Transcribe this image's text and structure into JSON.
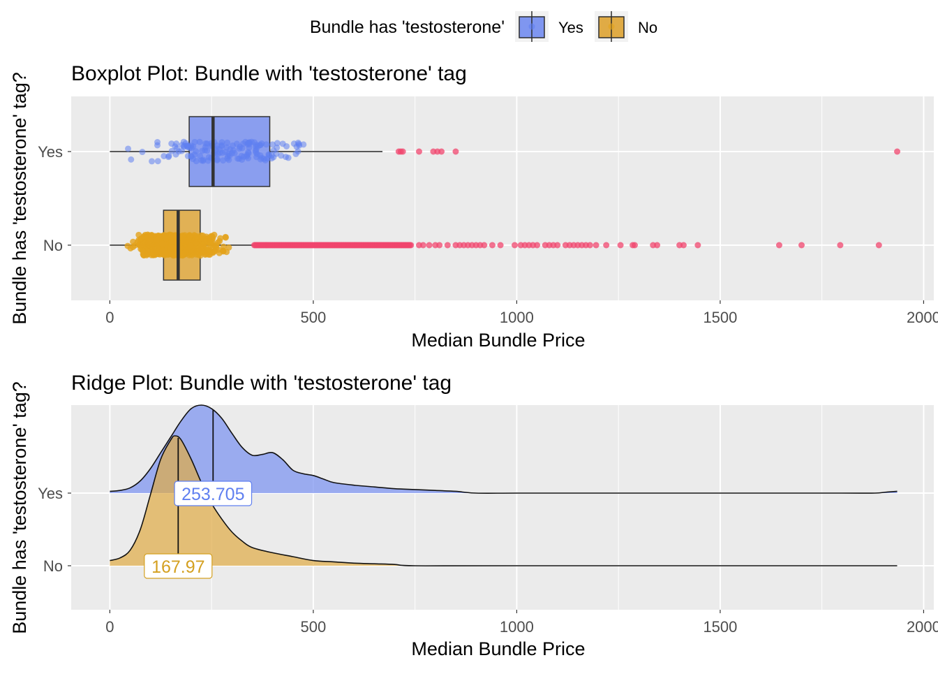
{
  "legend": {
    "title": "Bundle has 'testosterone'",
    "items": [
      {
        "label": "Yes",
        "fill": "#7f96f0",
        "stroke": "#2c2c2c"
      },
      {
        "label": "No",
        "fill": "#e0ab45",
        "stroke": "#2c2c2c"
      }
    ],
    "position": "top"
  },
  "colors": {
    "panel": "#ebebeb",
    "grid": "#ffffff",
    "yes_fill": "#7f96f0",
    "yes_point": "#5f7ff0",
    "no_fill": "#e0ab45",
    "no_point": "#e3a31b",
    "outlier": "#f0456e",
    "median_line": "#333333",
    "label_yes": "#5f7ff0",
    "label_no": "#d4a020"
  },
  "chart_data": [
    {
      "type": "box",
      "title": "Boxplot Plot: Bundle with 'testosterone' tag",
      "xlabel": "Median Bundle Price",
      "ylabel": "Bundle has 'testosterone' tag?",
      "categories": [
        "Yes",
        "No"
      ],
      "xlim": [
        -95,
        2025
      ],
      "xticks": [
        0,
        500,
        1000,
        1500,
        2000
      ],
      "grid": true,
      "series": [
        {
          "name": "Yes",
          "min": 0,
          "q1": 195,
          "median": 253.705,
          "q3": 393,
          "whisker_high": 670,
          "jitter_range": [
            0,
            550
          ],
          "outliers": [
            710,
            715,
            720,
            760,
            795,
            805,
            815,
            850,
            1935
          ]
        },
        {
          "name": "No",
          "min": 0,
          "q1": 132,
          "median": 167.97,
          "q3": 222,
          "whisker_high": 355,
          "jitter_range": [
            30,
            305
          ],
          "outliers_dense_range": [
            355,
            740
          ],
          "outliers": [
            760,
            770,
            785,
            800,
            810,
            830,
            850,
            860,
            870,
            880,
            890,
            900,
            910,
            920,
            940,
            960,
            995,
            1010,
            1020,
            1030,
            1040,
            1050,
            1070,
            1080,
            1090,
            1100,
            1120,
            1130,
            1140,
            1150,
            1160,
            1170,
            1180,
            1195,
            1220,
            1255,
            1285,
            1290,
            1335,
            1345,
            1400,
            1410,
            1445,
            1645,
            1700,
            1795,
            1890
          ]
        }
      ]
    },
    {
      "type": "area",
      "subtype": "ridgeline",
      "title": "Ridge Plot: Bundle with 'testosterone' tag",
      "xlabel": "Median Bundle Price",
      "ylabel": "Bundle has 'testosterone' tag?",
      "categories": [
        "Yes",
        "No"
      ],
      "xlim": [
        -95,
        2025
      ],
      "xticks": [
        0,
        500,
        1000,
        1500,
        2000
      ],
      "grid": true,
      "series": [
        {
          "name": "Yes",
          "median_label": "253.705",
          "median": 253.705,
          "density": [
            [
              0,
              0.02
            ],
            [
              25,
              0.03
            ],
            [
              50,
              0.06
            ],
            [
              75,
              0.14
            ],
            [
              100,
              0.28
            ],
            [
              125,
              0.46
            ],
            [
              150,
              0.64
            ],
            [
              175,
              0.82
            ],
            [
              200,
              0.96
            ],
            [
              225,
              1.0
            ],
            [
              250,
              0.96
            ],
            [
              275,
              0.85
            ],
            [
              300,
              0.68
            ],
            [
              325,
              0.52
            ],
            [
              350,
              0.43
            ],
            [
              375,
              0.44
            ],
            [
              400,
              0.46
            ],
            [
              425,
              0.38
            ],
            [
              450,
              0.26
            ],
            [
              475,
              0.22
            ],
            [
              500,
              0.2
            ],
            [
              525,
              0.16
            ],
            [
              550,
              0.12
            ],
            [
              600,
              0.09
            ],
            [
              650,
              0.07
            ],
            [
              700,
              0.05
            ],
            [
              750,
              0.04
            ],
            [
              800,
              0.03
            ],
            [
              850,
              0.02
            ],
            [
              900,
              0.0
            ],
            [
              1000,
              0.0
            ],
            [
              1200,
              0.0
            ],
            [
              1400,
              0.0
            ],
            [
              1600,
              0.0
            ],
            [
              1800,
              0.0
            ],
            [
              1880,
              0.0
            ],
            [
              1905,
              0.01
            ],
            [
              1935,
              0.02
            ]
          ]
        },
        {
          "name": "No",
          "median_label": "167.97",
          "median": 167.97,
          "density": [
            [
              0,
              0.04
            ],
            [
              25,
              0.06
            ],
            [
              50,
              0.12
            ],
            [
              75,
              0.28
            ],
            [
              100,
              0.55
            ],
            [
              125,
              0.82
            ],
            [
              150,
              0.97
            ],
            [
              160,
              1.0
            ],
            [
              175,
              0.97
            ],
            [
              200,
              0.82
            ],
            [
              225,
              0.64
            ],
            [
              250,
              0.48
            ],
            [
              275,
              0.36
            ],
            [
              300,
              0.26
            ],
            [
              325,
              0.19
            ],
            [
              350,
              0.14
            ],
            [
              400,
              0.1
            ],
            [
              450,
              0.07
            ],
            [
              500,
              0.04
            ],
            [
              550,
              0.03
            ],
            [
              600,
              0.02
            ],
            [
              650,
              0.015
            ],
            [
              700,
              0.01
            ],
            [
              750,
              0.0
            ],
            [
              1000,
              0.0
            ],
            [
              1935,
              0.0
            ]
          ]
        }
      ]
    }
  ]
}
